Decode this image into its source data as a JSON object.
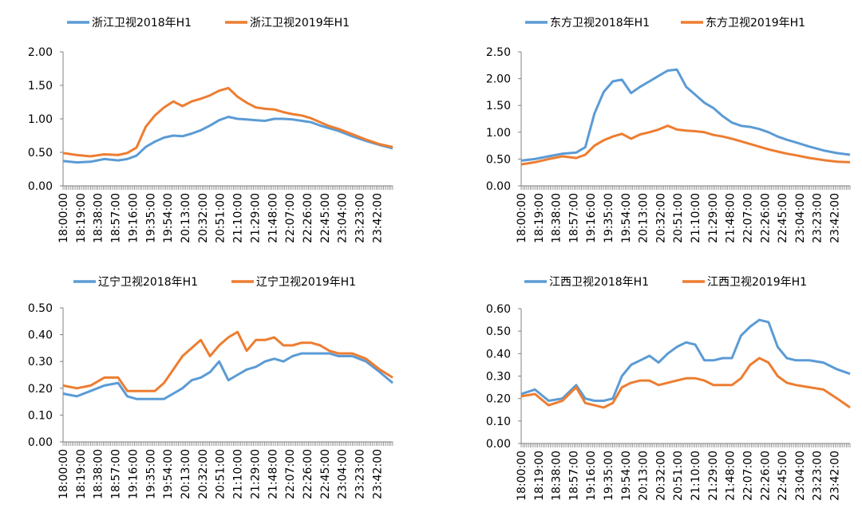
{
  "colors": {
    "s2018": "#5B9BD5",
    "s2019": "#ED7D31",
    "axis": "#808080",
    "text": "#000000"
  },
  "x_tick_labels": [
    "18:00:00",
    "18:19:00",
    "18:38:00",
    "18:57:00",
    "19:16:00",
    "19:35:00",
    "19:54:00",
    "20:13:00",
    "20:32:00",
    "20:51:00",
    "21:10:00",
    "21:29:00",
    "21:48:00",
    "22:07:00",
    "22:26:00",
    "22:45:00",
    "23:04:00",
    "23:23:00",
    "23:42:00"
  ],
  "chart_data": [
    {
      "type": "line",
      "grid": false,
      "legend": "top",
      "x": [
        "18:00",
        "18:15",
        "18:30",
        "18:45",
        "19:00",
        "19:10",
        "19:20",
        "19:30",
        "19:40",
        "19:50",
        "20:00",
        "20:10",
        "20:20",
        "20:30",
        "20:40",
        "20:50",
        "21:00",
        "21:10",
        "21:20",
        "21:30",
        "21:40",
        "21:50",
        "22:00",
        "22:10",
        "22:20",
        "22:30",
        "22:40",
        "22:50",
        "23:00",
        "23:15",
        "23:30",
        "23:45",
        "23:59"
      ],
      "ylim": [
        0,
        2
      ],
      "yticks": [
        "0.00",
        "0.50",
        "1.00",
        "1.50",
        "2.00"
      ],
      "series": [
        {
          "name": "浙江卫视2018年H1",
          "values": [
            0.37,
            0.35,
            0.36,
            0.4,
            0.38,
            0.4,
            0.45,
            0.58,
            0.66,
            0.72,
            0.75,
            0.74,
            0.78,
            0.83,
            0.9,
            0.98,
            1.03,
            1.0,
            0.99,
            0.98,
            0.97,
            1.0,
            1.0,
            0.99,
            0.97,
            0.95,
            0.9,
            0.86,
            0.82,
            0.74,
            0.67,
            0.61,
            0.56
          ]
        },
        {
          "name": "浙江卫视2019年H1",
          "values": [
            0.49,
            0.46,
            0.44,
            0.47,
            0.46,
            0.49,
            0.57,
            0.88,
            1.05,
            1.17,
            1.26,
            1.19,
            1.26,
            1.3,
            1.35,
            1.42,
            1.46,
            1.33,
            1.24,
            1.17,
            1.15,
            1.14,
            1.1,
            1.07,
            1.05,
            1.01,
            0.95,
            0.89,
            0.85,
            0.77,
            0.69,
            0.62,
            0.58
          ]
        }
      ]
    },
    {
      "type": "line",
      "grid": false,
      "legend": "top",
      "x": [
        "18:00",
        "18:15",
        "18:30",
        "18:45",
        "19:00",
        "19:10",
        "19:20",
        "19:30",
        "19:40",
        "19:50",
        "20:00",
        "20:10",
        "20:20",
        "20:30",
        "20:40",
        "20:50",
        "21:00",
        "21:10",
        "21:20",
        "21:30",
        "21:40",
        "21:50",
        "22:00",
        "22:10",
        "22:20",
        "22:30",
        "22:40",
        "22:50",
        "23:00",
        "23:15",
        "23:30",
        "23:45",
        "23:59"
      ],
      "ylim": [
        0,
        2.5
      ],
      "yticks": [
        "0.00",
        "0.50",
        "1.00",
        "1.50",
        "2.00",
        "2.50"
      ],
      "series": [
        {
          "name": "东方卫视2018年H1",
          "values": [
            0.47,
            0.5,
            0.55,
            0.6,
            0.62,
            0.72,
            1.35,
            1.75,
            1.95,
            1.98,
            1.73,
            1.85,
            1.95,
            2.05,
            2.15,
            2.17,
            1.85,
            1.7,
            1.55,
            1.45,
            1.3,
            1.18,
            1.12,
            1.1,
            1.06,
            1.0,
            0.92,
            0.86,
            0.81,
            0.73,
            0.66,
            0.61,
            0.58
          ]
        },
        {
          "name": "东方卫视2019年H1",
          "values": [
            0.4,
            0.44,
            0.5,
            0.55,
            0.52,
            0.58,
            0.75,
            0.85,
            0.92,
            0.97,
            0.88,
            0.96,
            1.0,
            1.05,
            1.12,
            1.05,
            1.03,
            1.02,
            1.0,
            0.95,
            0.92,
            0.88,
            0.83,
            0.78,
            0.73,
            0.68,
            0.64,
            0.6,
            0.57,
            0.52,
            0.48,
            0.45,
            0.44
          ]
        }
      ]
    },
    {
      "type": "line",
      "grid": false,
      "legend": "top",
      "x": [
        "18:00",
        "18:15",
        "18:30",
        "18:45",
        "19:00",
        "19:10",
        "19:20",
        "19:30",
        "19:40",
        "19:50",
        "20:00",
        "20:10",
        "20:20",
        "20:30",
        "20:40",
        "20:50",
        "21:00",
        "21:10",
        "21:20",
        "21:30",
        "21:40",
        "21:50",
        "22:00",
        "22:10",
        "22:20",
        "22:30",
        "22:40",
        "22:50",
        "23:00",
        "23:15",
        "23:30",
        "23:45",
        "23:59"
      ],
      "ylim": [
        0,
        0.5
      ],
      "yticks": [
        "0.00",
        "0.10",
        "0.20",
        "0.30",
        "0.40",
        "0.50"
      ],
      "series": [
        {
          "name": "辽宁卫视2018年H1",
          "values": [
            0.18,
            0.17,
            0.19,
            0.21,
            0.22,
            0.17,
            0.16,
            0.16,
            0.16,
            0.16,
            0.18,
            0.2,
            0.23,
            0.24,
            0.26,
            0.3,
            0.23,
            0.25,
            0.27,
            0.28,
            0.3,
            0.31,
            0.3,
            0.32,
            0.33,
            0.33,
            0.33,
            0.33,
            0.32,
            0.32,
            0.3,
            0.26,
            0.22
          ]
        },
        {
          "name": "辽宁卫视2019年H1",
          "values": [
            0.21,
            0.2,
            0.21,
            0.24,
            0.24,
            0.19,
            0.19,
            0.19,
            0.19,
            0.22,
            0.27,
            0.32,
            0.35,
            0.38,
            0.32,
            0.36,
            0.39,
            0.41,
            0.34,
            0.38,
            0.38,
            0.39,
            0.36,
            0.36,
            0.37,
            0.37,
            0.36,
            0.34,
            0.33,
            0.33,
            0.31,
            0.27,
            0.24
          ]
        }
      ]
    },
    {
      "type": "line",
      "grid": false,
      "legend": "top",
      "x": [
        "18:00",
        "18:15",
        "18:30",
        "18:45",
        "19:00",
        "19:10",
        "19:20",
        "19:30",
        "19:40",
        "19:50",
        "20:00",
        "20:10",
        "20:20",
        "20:30",
        "20:40",
        "20:50",
        "21:00",
        "21:10",
        "21:20",
        "21:30",
        "21:40",
        "21:50",
        "22:00",
        "22:10",
        "22:20",
        "22:30",
        "22:40",
        "22:50",
        "23:00",
        "23:15",
        "23:30",
        "23:45",
        "23:59"
      ],
      "ylim": [
        0,
        0.6
      ],
      "yticks": [
        "0.00",
        "0.10",
        "0.20",
        "0.30",
        "0.40",
        "0.50",
        "0.60"
      ],
      "series": [
        {
          "name": "江西卫视2018年H1",
          "values": [
            0.22,
            0.24,
            0.19,
            0.2,
            0.26,
            0.2,
            0.19,
            0.19,
            0.2,
            0.3,
            0.35,
            0.37,
            0.39,
            0.36,
            0.4,
            0.43,
            0.45,
            0.44,
            0.37,
            0.37,
            0.38,
            0.38,
            0.48,
            0.52,
            0.55,
            0.54,
            0.43,
            0.38,
            0.37,
            0.37,
            0.36,
            0.33,
            0.31
          ]
        },
        {
          "name": "江西卫视2019年H1",
          "values": [
            0.21,
            0.22,
            0.17,
            0.19,
            0.25,
            0.18,
            0.17,
            0.16,
            0.18,
            0.25,
            0.27,
            0.28,
            0.28,
            0.26,
            0.27,
            0.28,
            0.29,
            0.29,
            0.28,
            0.26,
            0.26,
            0.26,
            0.29,
            0.35,
            0.38,
            0.36,
            0.3,
            0.27,
            0.26,
            0.25,
            0.24,
            0.2,
            0.16
          ]
        }
      ]
    }
  ]
}
